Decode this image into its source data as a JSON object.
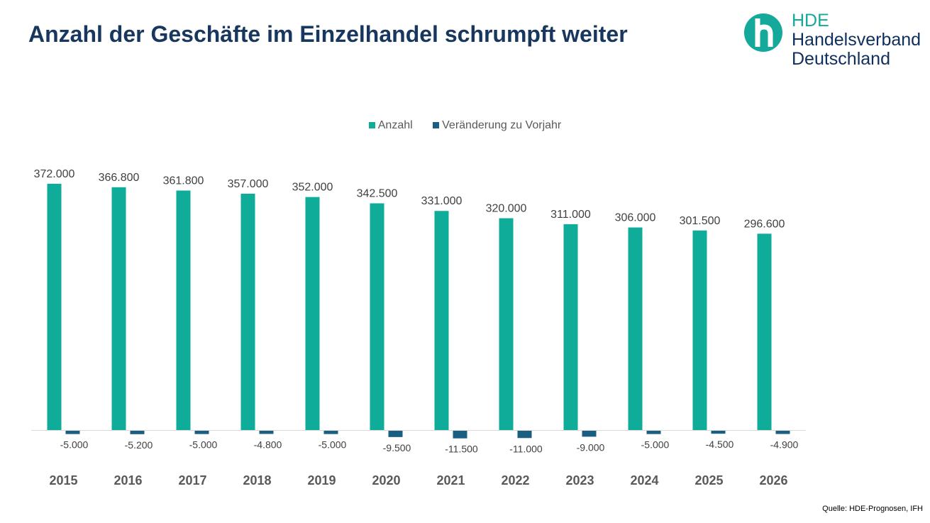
{
  "title": "Anzahl der Geschäfte im Einzelhandel schrumpft weiter",
  "logo": {
    "line1": "HDE",
    "line2": "Handelsverband",
    "line3": "Deutschland",
    "icon": "hde-h-circle-logo"
  },
  "source": "Quelle: HDE-Prognosen, IFH",
  "colors": {
    "anzahl": "#0fac99",
    "veraenderung": "#1a5e82",
    "title": "#17375e"
  },
  "chart_data": {
    "type": "bar",
    "title": "",
    "categories": [
      "2015",
      "2016",
      "2017",
      "2018",
      "2019",
      "2020",
      "2021",
      "2022",
      "2023",
      "2024",
      "2025",
      "2026"
    ],
    "series": [
      {
        "name": "Anzahl",
        "values": [
          372000,
          366800,
          361800,
          357000,
          352000,
          342500,
          331000,
          320000,
          311000,
          306000,
          301500,
          296600
        ],
        "labels": [
          "372.000",
          "366.800",
          "361.800",
          "357.000",
          "352.000",
          "342.500",
          "331.000",
          "320.000",
          "311.000",
          "306.000",
          "301.500",
          "296.600"
        ]
      },
      {
        "name": "Veränderung zu Vorjahr",
        "values": [
          -5000,
          -5200,
          -5000,
          -4800,
          -5000,
          -9500,
          -11500,
          -11000,
          -9000,
          -5000,
          -4500,
          -4900
        ],
        "labels": [
          "-5.000",
          "-5.200",
          "-5.000",
          "-4.800",
          "-5.000",
          "-9.500",
          "-11.500",
          "-11.000",
          "-9.000",
          "-5.000",
          "-4.500",
          "-4.900"
        ]
      }
    ],
    "legend": "top-center",
    "grid": false
  }
}
